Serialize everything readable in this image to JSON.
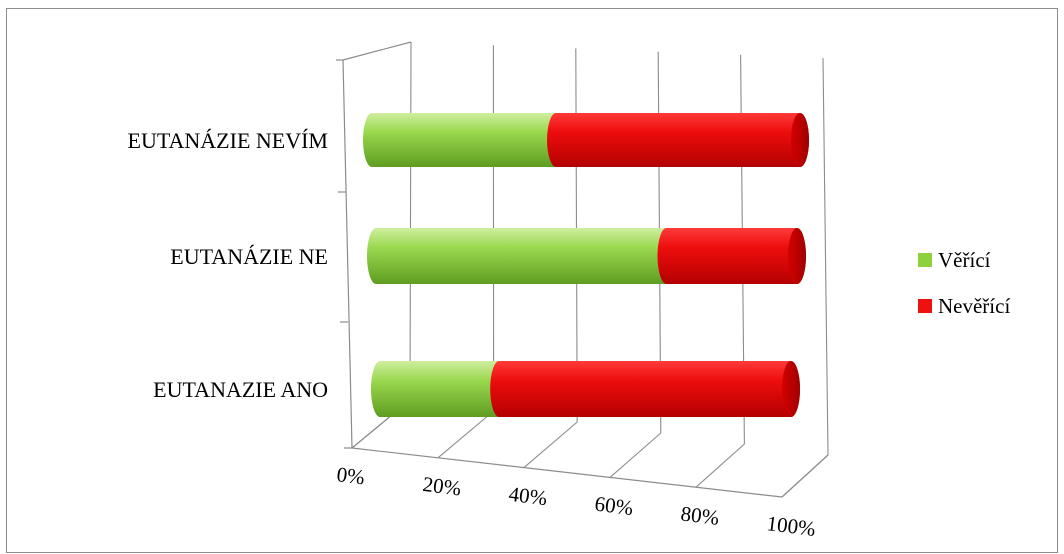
{
  "chart_data": {
    "type": "bar",
    "orientation": "horizontal",
    "stacked": "percent",
    "three_d": true,
    "categories": [
      "EUTANÁZIE NEVÍM",
      "EUTANÁZIE NE",
      "EUTANAZIE ANO"
    ],
    "series": [
      {
        "name": "Věřící",
        "color": "#8fd13c",
        "values": [
          43,
          69,
          29
        ]
      },
      {
        "name": "Nevěřící",
        "color": "#ee1111",
        "values": [
          57,
          31,
          71
        ]
      }
    ],
    "xticks": [
      "0%",
      "20%",
      "40%",
      "60%",
      "80%",
      "100%"
    ],
    "xlim": [
      0,
      100
    ],
    "title": "",
    "xlabel": "",
    "ylabel": "",
    "grid": true,
    "legend": "right"
  }
}
